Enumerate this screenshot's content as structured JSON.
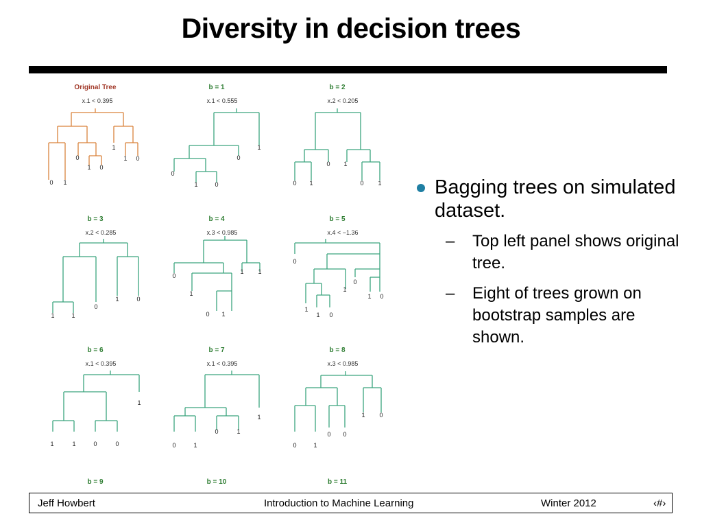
{
  "slide": {
    "title": "Diversity in decision trees"
  },
  "panels": [
    {
      "label": "Original Tree",
      "split": "x.1 < 0.395",
      "original": true,
      "leaves": [
        [
          "0",
          "1"
        ],
        [
          "0"
        ],
        [
          "1",
          "0"
        ],
        [
          "1"
        ],
        [
          "1",
          "0"
        ]
      ]
    },
    {
      "label": "b = 1",
      "split": "x.1 < 0.555",
      "leaves": [
        [
          "0"
        ],
        [
          "1",
          "0"
        ],
        [
          "0"
        ],
        [
          "1"
        ]
      ]
    },
    {
      "label": "b = 2",
      "split": "x.2 < 0.205",
      "leaves": [
        [
          "0",
          "1"
        ],
        [
          "0"
        ],
        [
          "1"
        ],
        [
          "0",
          "1"
        ]
      ]
    },
    {
      "label": "b = 3",
      "split": "x.2 < 0.285",
      "leaves": [
        [
          "1",
          "1"
        ],
        [
          "0"
        ],
        [
          "1",
          "0"
        ]
      ]
    },
    {
      "label": "b = 4",
      "split": "x.3 < 0.985",
      "leaves": [
        [
          "0"
        ],
        [
          "1"
        ],
        [
          "0",
          "1"
        ],
        [
          "1",
          "1"
        ]
      ]
    },
    {
      "label": "b = 5",
      "split": "x.4 < −1.36",
      "leaves": [
        [
          "0"
        ],
        [
          "1"
        ],
        [
          "1",
          "0"
        ],
        [
          "1"
        ],
        [
          "0"
        ],
        [
          "1",
          "0"
        ]
      ]
    },
    {
      "label": "b = 6",
      "split": "x.1 < 0.395",
      "leaves": [
        [
          "1",
          "1"
        ],
        [
          "0",
          "0"
        ],
        [
          "1"
        ]
      ]
    },
    {
      "label": "b = 7",
      "split": "x.1 < 0.395",
      "leaves": [
        [
          "0",
          "1"
        ],
        [
          "0",
          "1"
        ],
        [
          "1"
        ]
      ]
    },
    {
      "label": "b = 8",
      "split": "x.3 < 0.985",
      "leaves": [
        [
          "0",
          "1"
        ],
        [
          "0",
          "0"
        ],
        [
          "1",
          "0"
        ]
      ]
    }
  ],
  "bottom_labels": [
    "b = 9",
    "b = 10",
    "b = 11"
  ],
  "colors": {
    "original": "#d9823b",
    "bootstrap": "#3aa57e",
    "label_original": "#a23a2a",
    "label_bootstrap": "#2e7d32",
    "bullet": "#1f7fa3"
  },
  "bullets": {
    "main": "Bagging trees on simulated dataset.",
    "sub": [
      "Top left panel shows original tree.",
      "Eight of trees grown on bootstrap samples are shown."
    ]
  },
  "footer": {
    "author": "Jeff Howbert",
    "course": "Introduction to Machine Learning",
    "term": "Winter 2012",
    "page": "‹#›"
  }
}
